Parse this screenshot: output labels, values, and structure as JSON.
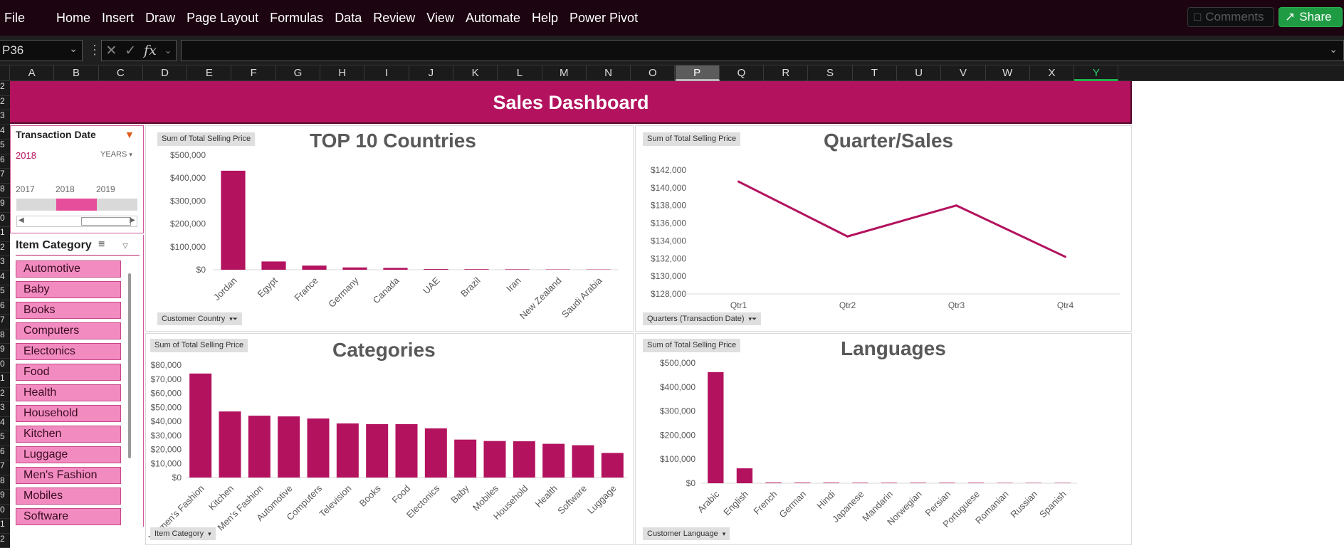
{
  "ribbon": {
    "tabs": [
      "File",
      "Home",
      "Insert",
      "Draw",
      "Page Layout",
      "Formulas",
      "Data",
      "Review",
      "View",
      "Automate",
      "Help",
      "Power Pivot"
    ],
    "comments_label": "Comments",
    "share_label": "Share"
  },
  "formula_bar": {
    "name_box": "P36",
    "formula": ""
  },
  "columns": [
    "A",
    "B",
    "C",
    "D",
    "E",
    "F",
    "G",
    "H",
    "I",
    "J",
    "K",
    "L",
    "M",
    "N",
    "O",
    "P",
    "Q",
    "R",
    "S",
    "T",
    "U",
    "V",
    "W",
    "X",
    "Y"
  ],
  "selected_column": "P",
  "rows": [
    "2",
    "2",
    "3",
    "4",
    "5",
    "6",
    "7",
    "8",
    "9",
    "0",
    "1",
    "2",
    "3",
    "4",
    "5",
    "6",
    "7",
    "8",
    "9",
    "0",
    "1",
    "2",
    "3",
    "4",
    "5",
    "6",
    "7",
    "8",
    "9",
    "0",
    "1",
    "2"
  ],
  "dashboard": {
    "title": "Sales Dashboard",
    "colors": {
      "accent": "#b3125e",
      "slicer_item": "#f28bc0"
    }
  },
  "timeline": {
    "title": "Transaction Date",
    "selection": "2018",
    "level": "YEARS",
    "years": [
      "2017",
      "2018",
      "2019"
    ],
    "selected_year": "2018"
  },
  "item_slicer": {
    "title": "Item Category",
    "items": [
      "Automotive",
      "Baby",
      "Books",
      "Computers",
      "Electonics",
      "Food",
      "Health",
      "Household",
      "Kitchen",
      "Luggage",
      "Men's Fashion",
      "Mobiles",
      "Software"
    ]
  },
  "chart_data": [
    {
      "id": "countries",
      "type": "bar",
      "title": "TOP 10 Countries",
      "value_field": "Sum of Total Selling Price",
      "axis_field": "Customer Country",
      "categories": [
        "Jordan",
        "Egypt",
        "France",
        "Germany",
        "Canada",
        "UAE",
        "Brazil",
        "Iran",
        "New Zealand",
        "Saudi Arabia"
      ],
      "values": [
        432000,
        36000,
        18000,
        10000,
        8000,
        3000,
        2500,
        2000,
        1500,
        1200
      ],
      "yticks": [
        "$0",
        "$100,000",
        "$200,000",
        "$300,000",
        "$400,000",
        "$500,000"
      ],
      "ylim": [
        0,
        500000
      ]
    },
    {
      "id": "quarters",
      "type": "line",
      "title": "Quarter/Sales",
      "value_field": "Sum of Total Selling Price",
      "axis_field": "Quarters (Transaction Date)",
      "categories": [
        "Qtr1",
        "Qtr2",
        "Qtr3",
        "Qtr4"
      ],
      "values": [
        140700,
        134500,
        138000,
        132200
      ],
      "yticks": [
        "$128,000",
        "$130,000",
        "$132,000",
        "$134,000",
        "$136,000",
        "$138,000",
        "$140,000",
        "$142,000"
      ],
      "ylim": [
        128000,
        142000
      ]
    },
    {
      "id": "categories",
      "type": "bar",
      "title": "Categories",
      "value_field": "Sum of Total Selling Price",
      "axis_field": "Item Category",
      "categories": [
        "Women's Fashion",
        "Kitchen",
        "Men's Fashion",
        "Automotive",
        "Computers",
        "Television",
        "Books",
        "Food",
        "Electonics",
        "Baby",
        "Mobiles",
        "Household",
        "Health",
        "Software",
        "Luggage"
      ],
      "values": [
        74000,
        47000,
        44000,
        43500,
        42000,
        38500,
        38000,
        38000,
        35000,
        27000,
        26000,
        25800,
        24000,
        23000,
        17500
      ],
      "yticks": [
        "$0",
        "$10,000",
        "$20,000",
        "$30,000",
        "$40,000",
        "$50,000",
        "$60,000",
        "$70,000",
        "$80,000"
      ],
      "ylim": [
        0,
        80000
      ]
    },
    {
      "id": "languages",
      "type": "bar",
      "title": "Languages",
      "value_field": "Sum of Total Selling Price",
      "axis_field": "Customer Language",
      "categories": [
        "Arabic",
        "English",
        "French",
        "German",
        "Hindi",
        "Japanese",
        "Mandarin",
        "Norwegian",
        "Persian",
        "Portuguese",
        "Romanian",
        "Russian",
        "Spanish"
      ],
      "values": [
        462000,
        62000,
        3000,
        2500,
        2500,
        2000,
        2000,
        2000,
        2000,
        2000,
        1500,
        1500,
        1500
      ],
      "yticks": [
        "$0",
        "$100,000",
        "$200,000",
        "$300,000",
        "$400,000",
        "$500,000"
      ],
      "ylim": [
        0,
        500000
      ]
    }
  ]
}
